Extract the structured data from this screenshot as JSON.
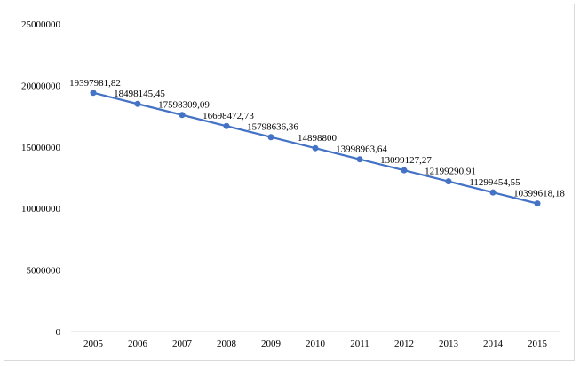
{
  "chart_data": {
    "type": "line",
    "title": "",
    "xlabel": "",
    "ylabel": "",
    "x": [
      "2005",
      "2006",
      "2007",
      "2008",
      "2009",
      "2010",
      "2011",
      "2012",
      "2013",
      "2014",
      "2015"
    ],
    "series": [
      {
        "name": "",
        "color": "#4472C4",
        "values": [
          19397981.82,
          18498145.45,
          17598309.09,
          16698472.73,
          15798636.36,
          14898800,
          13998963.64,
          13099127.27,
          12199290.91,
          11299454.55,
          10399618.18
        ],
        "labels": [
          "19397981,82",
          "18498145,45",
          "17598309,09",
          "16698472,73",
          "15798636,36",
          "14898800",
          "13998963,64",
          "13099127,27",
          "12199290,91",
          "11299454,55",
          "10399618,18"
        ]
      }
    ],
    "ylim": [
      0,
      25000000
    ],
    "yticks": [
      0,
      5000000,
      10000000,
      15000000,
      20000000,
      25000000
    ],
    "ytick_labels": [
      "0",
      "5000000",
      "10000000",
      "15000000",
      "20000000",
      "25000000"
    ],
    "grid": false,
    "legend": "none"
  }
}
